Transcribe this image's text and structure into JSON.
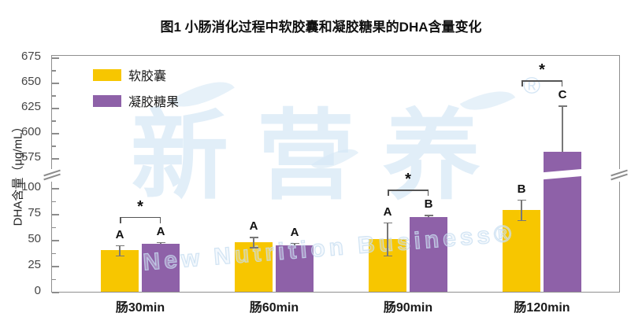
{
  "title": "图1 小肠消化过程中软胶囊和凝胶糖果的DHA含量变化",
  "watermark": {
    "main": "新营养",
    "registered": "®",
    "subtitle": "New Nutrition Business",
    "sub_registered": "®",
    "color": "#DCE9F5"
  },
  "colors": {
    "soft_capsule": "#F7C600",
    "gel_candy": "#8E61A8",
    "axis": "#8C8C8C",
    "error_bar": "#787878"
  },
  "chart_data": {
    "type": "bar",
    "title": "图1 小肠消化过程中软胶囊和凝胶糖果的DHA含量变化",
    "xlabel": "",
    "ylabel": "DHA含量（μg/mL）",
    "categories": [
      "肠30min",
      "肠60min",
      "肠90min",
      "肠120min"
    ],
    "series": [
      {
        "name": "软胶囊",
        "color": "#F7C600",
        "values": [
          40,
          48,
          51,
          79
        ],
        "errors": [
          5,
          5,
          16,
          10
        ],
        "letters": [
          "A",
          "A",
          "A",
          "B"
        ]
      },
      {
        "name": "凝胶糖果",
        "color": "#8E61A8",
        "values": [
          46,
          45,
          72,
          581
        ],
        "errors": [
          2,
          2,
          2,
          46
        ],
        "letters": [
          "A",
          "A",
          "B",
          "C"
        ]
      }
    ],
    "significance": [
      {
        "group": 0,
        "label": "*"
      },
      {
        "group": 2,
        "label": "*"
      },
      {
        "group": 3,
        "label": "*"
      }
    ],
    "axis_break": {
      "lower_max": 100,
      "upper_min": 575
    },
    "y_ticks_lower": [
      0,
      25,
      50,
      75,
      100
    ],
    "y_ticks_upper": [
      575,
      600,
      625,
      650,
      675
    ],
    "y_minor_ticks": [
      12.5,
      37.5,
      62.5,
      87.5,
      587.5,
      612.5,
      637.5,
      662.5
    ],
    "ylim_lower": [
      0,
      100
    ],
    "ylim_upper": [
      575,
      675
    ],
    "legend_position": "top-left",
    "grid": false
  }
}
